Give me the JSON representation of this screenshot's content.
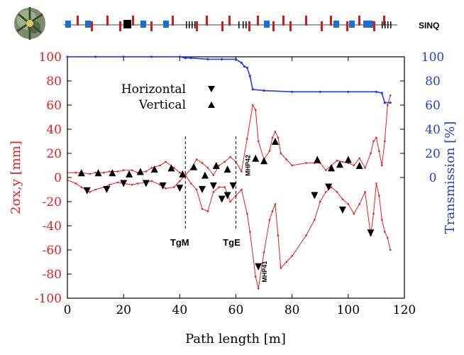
{
  "chart_data": {
    "type": "line",
    "title": "",
    "xlabel": "Path length [m]",
    "ylabel_left": "2σx,y [mm]",
    "ylabel_right": "Transmission [%]",
    "xlim": [
      0,
      120
    ],
    "ylim_left": [
      -100,
      100
    ],
    "ylim_right_visible": [
      0,
      100
    ],
    "x_ticks": [
      0,
      20,
      40,
      60,
      80,
      100,
      120
    ],
    "y_ticks_left": [
      -100,
      -80,
      -60,
      -40,
      -20,
      0,
      20,
      40,
      60,
      80,
      100
    ],
    "y_ticks_right": [
      0,
      20,
      40,
      60,
      80,
      100
    ],
    "grid": false,
    "colors": {
      "envelope": "#ee1c1c",
      "transmission": "#1f3fe0",
      "markers": "#000000",
      "axis_left": "#ee1c1c",
      "axis_right": "#1f3fe0"
    },
    "legend": [
      {
        "name": "Horizontal",
        "symbol": "down-triangle"
      },
      {
        "name": "Vertical",
        "symbol": "up-triangle"
      }
    ],
    "annotations": [
      {
        "text": "TgM",
        "x": 42
      },
      {
        "text": "TgE",
        "x": 60
      },
      {
        "text": "MHP42",
        "x": 65,
        "y": 10
      },
      {
        "text": "MHP41",
        "x": 71,
        "y": -78
      }
    ],
    "beamline_label": "SINQ",
    "series": [
      {
        "name": "Envelope (upper)",
        "axis": "left",
        "x": [
          0,
          3,
          5,
          8,
          10,
          13,
          15,
          18,
          20,
          23,
          25,
          28,
          30,
          33,
          35,
          38,
          40,
          42,
          44,
          46,
          48,
          50,
          52,
          54,
          56,
          58,
          60,
          62,
          64,
          66,
          67,
          68,
          70,
          72,
          73,
          74,
          75,
          76,
          78,
          80,
          85,
          88,
          90,
          92,
          94,
          96,
          98,
          100,
          102,
          104,
          106,
          108,
          109,
          110,
          111,
          112,
          113,
          114,
          115
        ],
        "values": [
          4,
          4,
          4,
          3,
          4,
          4,
          5,
          5,
          6,
          6,
          4,
          5,
          8,
          10,
          13,
          8,
          4,
          2,
          7,
          15,
          12,
          8,
          2,
          10,
          13,
          17,
          13,
          5,
          32,
          60,
          56,
          30,
          15,
          22,
          33,
          38,
          33,
          20,
          15,
          10,
          12,
          12,
          12,
          6,
          10,
          14,
          13,
          12,
          10,
          16,
          8,
          20,
          30,
          33,
          22,
          10,
          30,
          60,
          68
        ]
      },
      {
        "name": "Envelope (lower)",
        "axis": "left",
        "x": [
          0,
          3,
          5,
          8,
          10,
          13,
          15,
          18,
          20,
          23,
          25,
          28,
          30,
          33,
          35,
          38,
          40,
          42,
          44,
          46,
          48,
          50,
          52,
          54,
          56,
          58,
          60,
          62,
          64,
          65,
          67,
          68,
          70,
          72,
          73,
          74,
          75,
          76,
          78,
          80,
          85,
          88,
          90,
          92,
          94,
          96,
          98,
          100,
          102,
          104,
          106,
          108,
          109,
          110,
          111,
          112,
          113,
          114,
          115
        ],
        "values": [
          -2,
          -5,
          -8,
          -12,
          -10,
          -8,
          -6,
          -4,
          -5,
          -6,
          -5,
          -4,
          -3,
          -6,
          -9,
          -8,
          -3,
          2,
          -5,
          -10,
          -26,
          -28,
          -12,
          -8,
          -8,
          -20,
          -15,
          -10,
          -30,
          -45,
          -82,
          -92,
          -62,
          -35,
          -28,
          -22,
          -48,
          -75,
          -70,
          -65,
          -48,
          -35,
          -20,
          -12,
          -8,
          -12,
          -18,
          -22,
          -30,
          -22,
          -12,
          -48,
          -30,
          -5,
          -15,
          -35,
          -45,
          -50,
          -60
        ]
      },
      {
        "name": "Transmission",
        "axis": "right",
        "x": [
          0,
          10,
          20,
          30,
          40,
          42,
          44,
          50,
          55,
          60,
          62,
          63,
          64,
          65,
          66,
          70,
          80,
          90,
          100,
          110,
          112,
          113,
          115
        ],
        "values": [
          100,
          100,
          100,
          100,
          100,
          99,
          99,
          98,
          98,
          98,
          95,
          92,
          91,
          84,
          73,
          72,
          71,
          71,
          71,
          71,
          70,
          62,
          62
        ]
      },
      {
        "name": "Horizontal",
        "axis": "left",
        "marker": "down-triangle",
        "x": [
          7,
          14,
          20,
          28,
          34,
          40,
          48,
          52,
          55,
          57,
          59,
          68,
          88,
          93,
          98,
          108
        ],
        "values": [
          -11,
          -10,
          -5,
          -5,
          -7,
          -9,
          -10,
          -7,
          -18,
          -15,
          -7,
          -74,
          -15,
          -8,
          -27,
          -46
        ]
      },
      {
        "name": "Vertical",
        "axis": "left",
        "marker": "up-triangle",
        "x": [
          5,
          11,
          16,
          22,
          26,
          31,
          37,
          41,
          45,
          49,
          53,
          57,
          67,
          70,
          74,
          89,
          94,
          97,
          100,
          104
        ],
        "values": [
          4,
          4,
          4,
          3,
          5,
          7,
          8,
          3,
          9,
          2,
          10,
          7,
          16,
          14,
          30,
          15,
          8,
          11,
          15,
          10
        ]
      }
    ]
  }
}
